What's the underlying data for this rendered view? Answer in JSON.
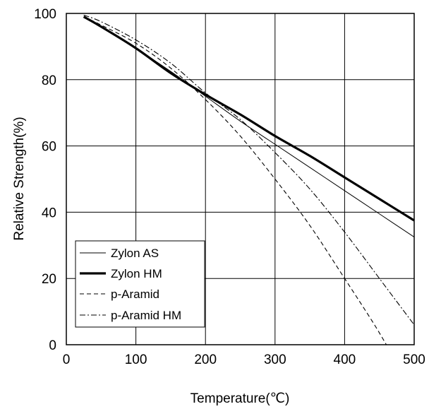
{
  "chart_data": {
    "type": "line",
    "title": "",
    "xlabel": "Temperature(℃)",
    "ylabel": "Relative Strength(%)",
    "xlim": [
      0,
      500
    ],
    "ylim": [
      0,
      100
    ],
    "x_ticks": [
      0,
      100,
      200,
      300,
      400,
      500
    ],
    "y_ticks": [
      0,
      20,
      40,
      60,
      80,
      100
    ],
    "x_tick_labels": [
      "0",
      "100",
      "200",
      "300",
      "400",
      "500"
    ],
    "y_tick_labels": [
      "0",
      "20",
      "40",
      "60",
      "80",
      "100"
    ],
    "grid": true,
    "legend_position": "bottom-left",
    "series": [
      {
        "name": "Zylon AS",
        "style": "thin-solid",
        "x": [
          25,
          50,
          100,
          150,
          200,
          250,
          300,
          350,
          400,
          450,
          500
        ],
        "y": [
          99,
          96,
          89.5,
          82.5,
          75,
          67.5,
          60.5,
          53.5,
          46.5,
          39.5,
          32.5
        ]
      },
      {
        "name": "Zylon HM",
        "style": "thick-solid",
        "x": [
          25,
          50,
          100,
          150,
          200,
          250,
          300,
          350,
          400,
          450,
          500
        ],
        "y": [
          99,
          96,
          89.5,
          82,
          75.5,
          69.5,
          63,
          57,
          50.5,
          44,
          37.5
        ]
      },
      {
        "name": "p-Aramid",
        "style": "dashed",
        "x": [
          25,
          50,
          100,
          150,
          200,
          250,
          300,
          350,
          400,
          440,
          460
        ],
        "y": [
          99,
          96.5,
          91,
          83.5,
          74,
          63,
          50,
          36,
          20,
          7,
          0
        ]
      },
      {
        "name": "p-Aramid HM",
        "style": "dash-dot",
        "x": [
          25,
          50,
          100,
          150,
          200,
          250,
          300,
          350,
          400,
          450,
          500
        ],
        "y": [
          99.5,
          97.5,
          92,
          85,
          76,
          68,
          58,
          47,
          34,
          20,
          6
        ]
      }
    ]
  }
}
